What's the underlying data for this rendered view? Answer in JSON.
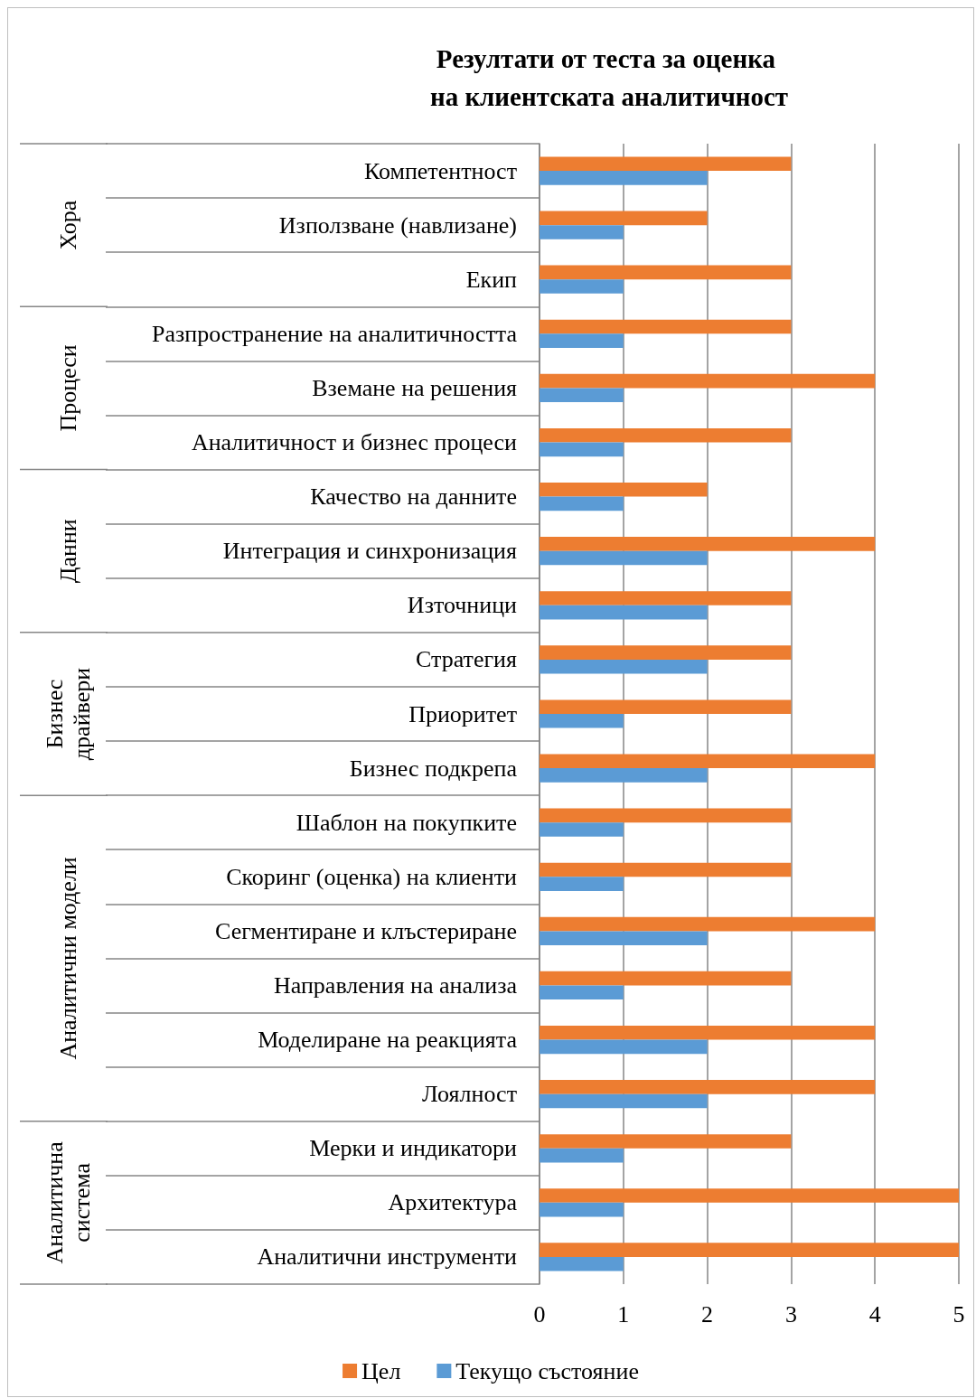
{
  "chart_data": {
    "type": "bar",
    "orientation": "horizontal",
    "title": "Резултати от теста за оценка на клиентската аналитичност",
    "categories": [
      "Компетентност",
      "Използване (навлизане)",
      "Екип",
      "Разпространение на аналитичността",
      "Вземане на решения",
      "Аналитичност и бизнес процеси",
      "Качество на данните",
      "Интеграция и синхронизация",
      "Източници",
      "Стратегия",
      "Приоритет",
      "Бизнес подкрепа",
      "Шаблон на покупките",
      "Скоринг (оценка) на клиенти",
      "Сегментиране и клъстериране",
      "Направления на анализа",
      "Моделиране на реакцията",
      "Лоялност",
      "Мерки и индикатори",
      "Архитектура",
      "Аналитични инструменти"
    ],
    "series": [
      {
        "name": "Цел",
        "color": "#ed7d31",
        "values": [
          3,
          2,
          3,
          3,
          4,
          3,
          2,
          4,
          3,
          3,
          3,
          4,
          3,
          3,
          4,
          3,
          4,
          4,
          3,
          5,
          5
        ]
      },
      {
        "name": "Текущо състояние",
        "color": "#5b9bd5",
        "values": [
          2,
          1,
          1,
          1,
          1,
          1,
          1,
          2,
          2,
          2,
          1,
          2,
          1,
          1,
          2,
          1,
          2,
          2,
          1,
          1,
          1
        ]
      }
    ],
    "annotations": [
      "Хора",
      "Процеси",
      "Данни",
      "Бизнес драйвери",
      "Аналитични модели",
      "Аналитична система"
    ],
    "xlim": [
      0,
      5
    ],
    "xticks": [
      0,
      1,
      2,
      3,
      4,
      5
    ],
    "grid": "x",
    "legend": "bottom"
  }
}
